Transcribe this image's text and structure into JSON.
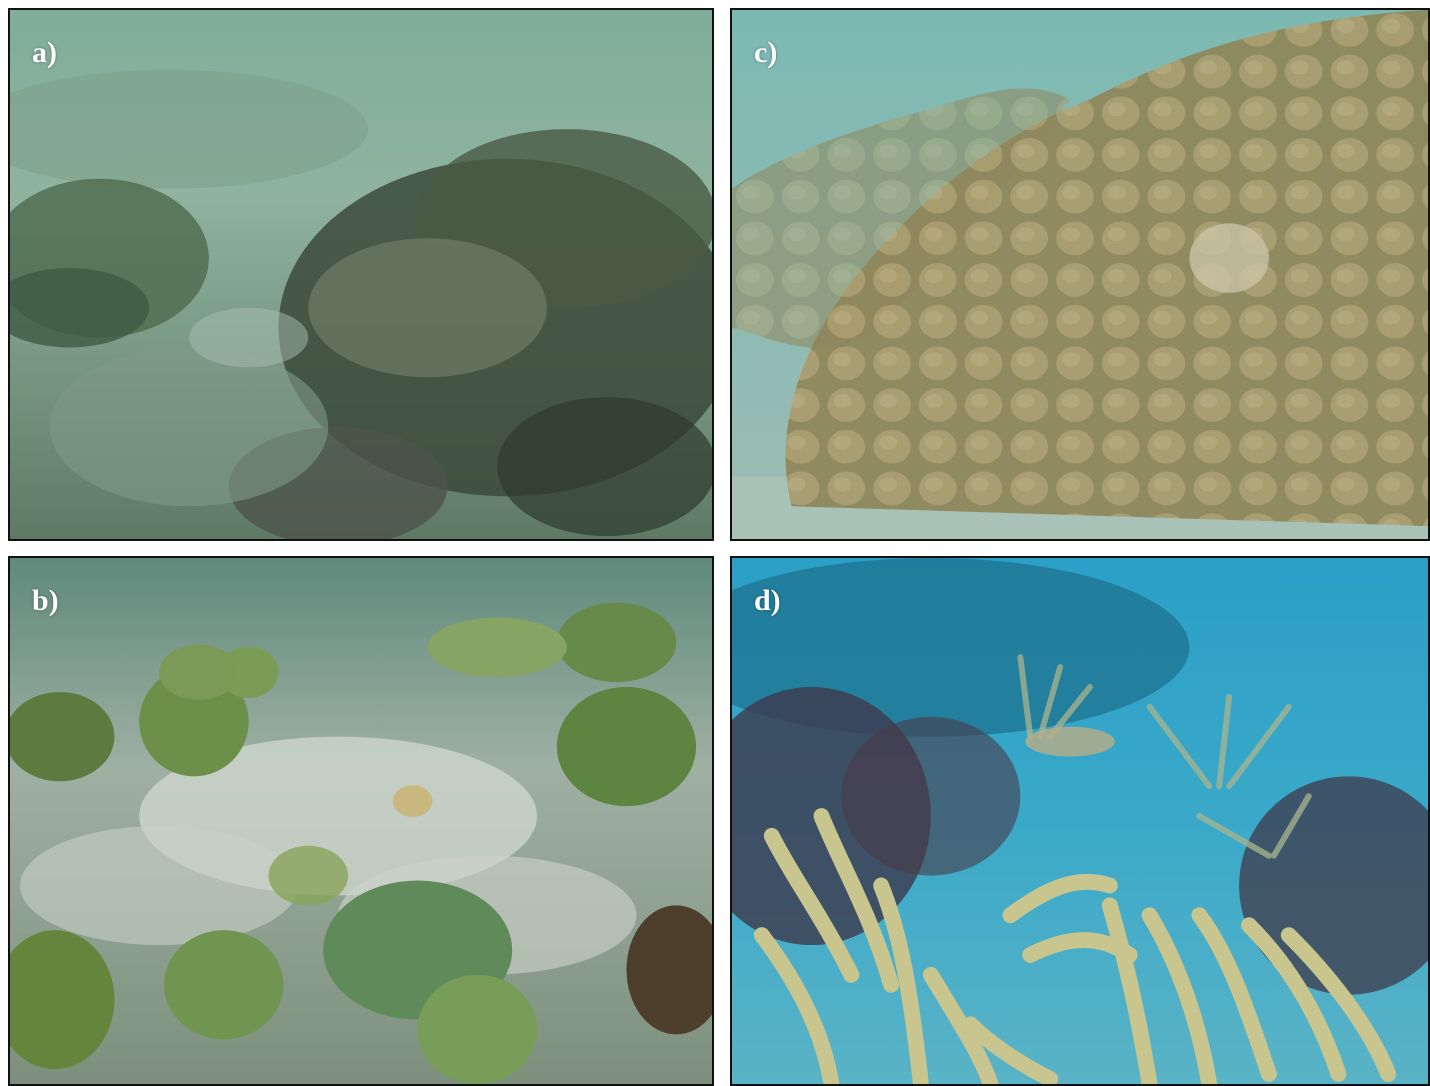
{
  "figure": {
    "panels": [
      {
        "id": "a",
        "label": "a)",
        "scene": "degraded-reef-rubble",
        "palette": [
          "#7fa896",
          "#4f6b52",
          "#3a4a3a",
          "#9bb3a0"
        ]
      },
      {
        "id": "b",
        "label": "b)",
        "scene": "brain-coral-field",
        "palette": [
          "#5f8a4e",
          "#6f9a55",
          "#cfd6cf",
          "#3f5a37"
        ]
      },
      {
        "id": "c",
        "label": "c)",
        "scene": "massive-lobed-coral",
        "palette": [
          "#7fb4ad",
          "#a0946a",
          "#8c8259",
          "#b7ad84"
        ]
      },
      {
        "id": "d",
        "label": "d)",
        "scene": "gorgonian-sea-rods",
        "palette": [
          "#2aa0c4",
          "#1d6f8a",
          "#b8b47e",
          "#5a4a5a"
        ]
      }
    ]
  }
}
